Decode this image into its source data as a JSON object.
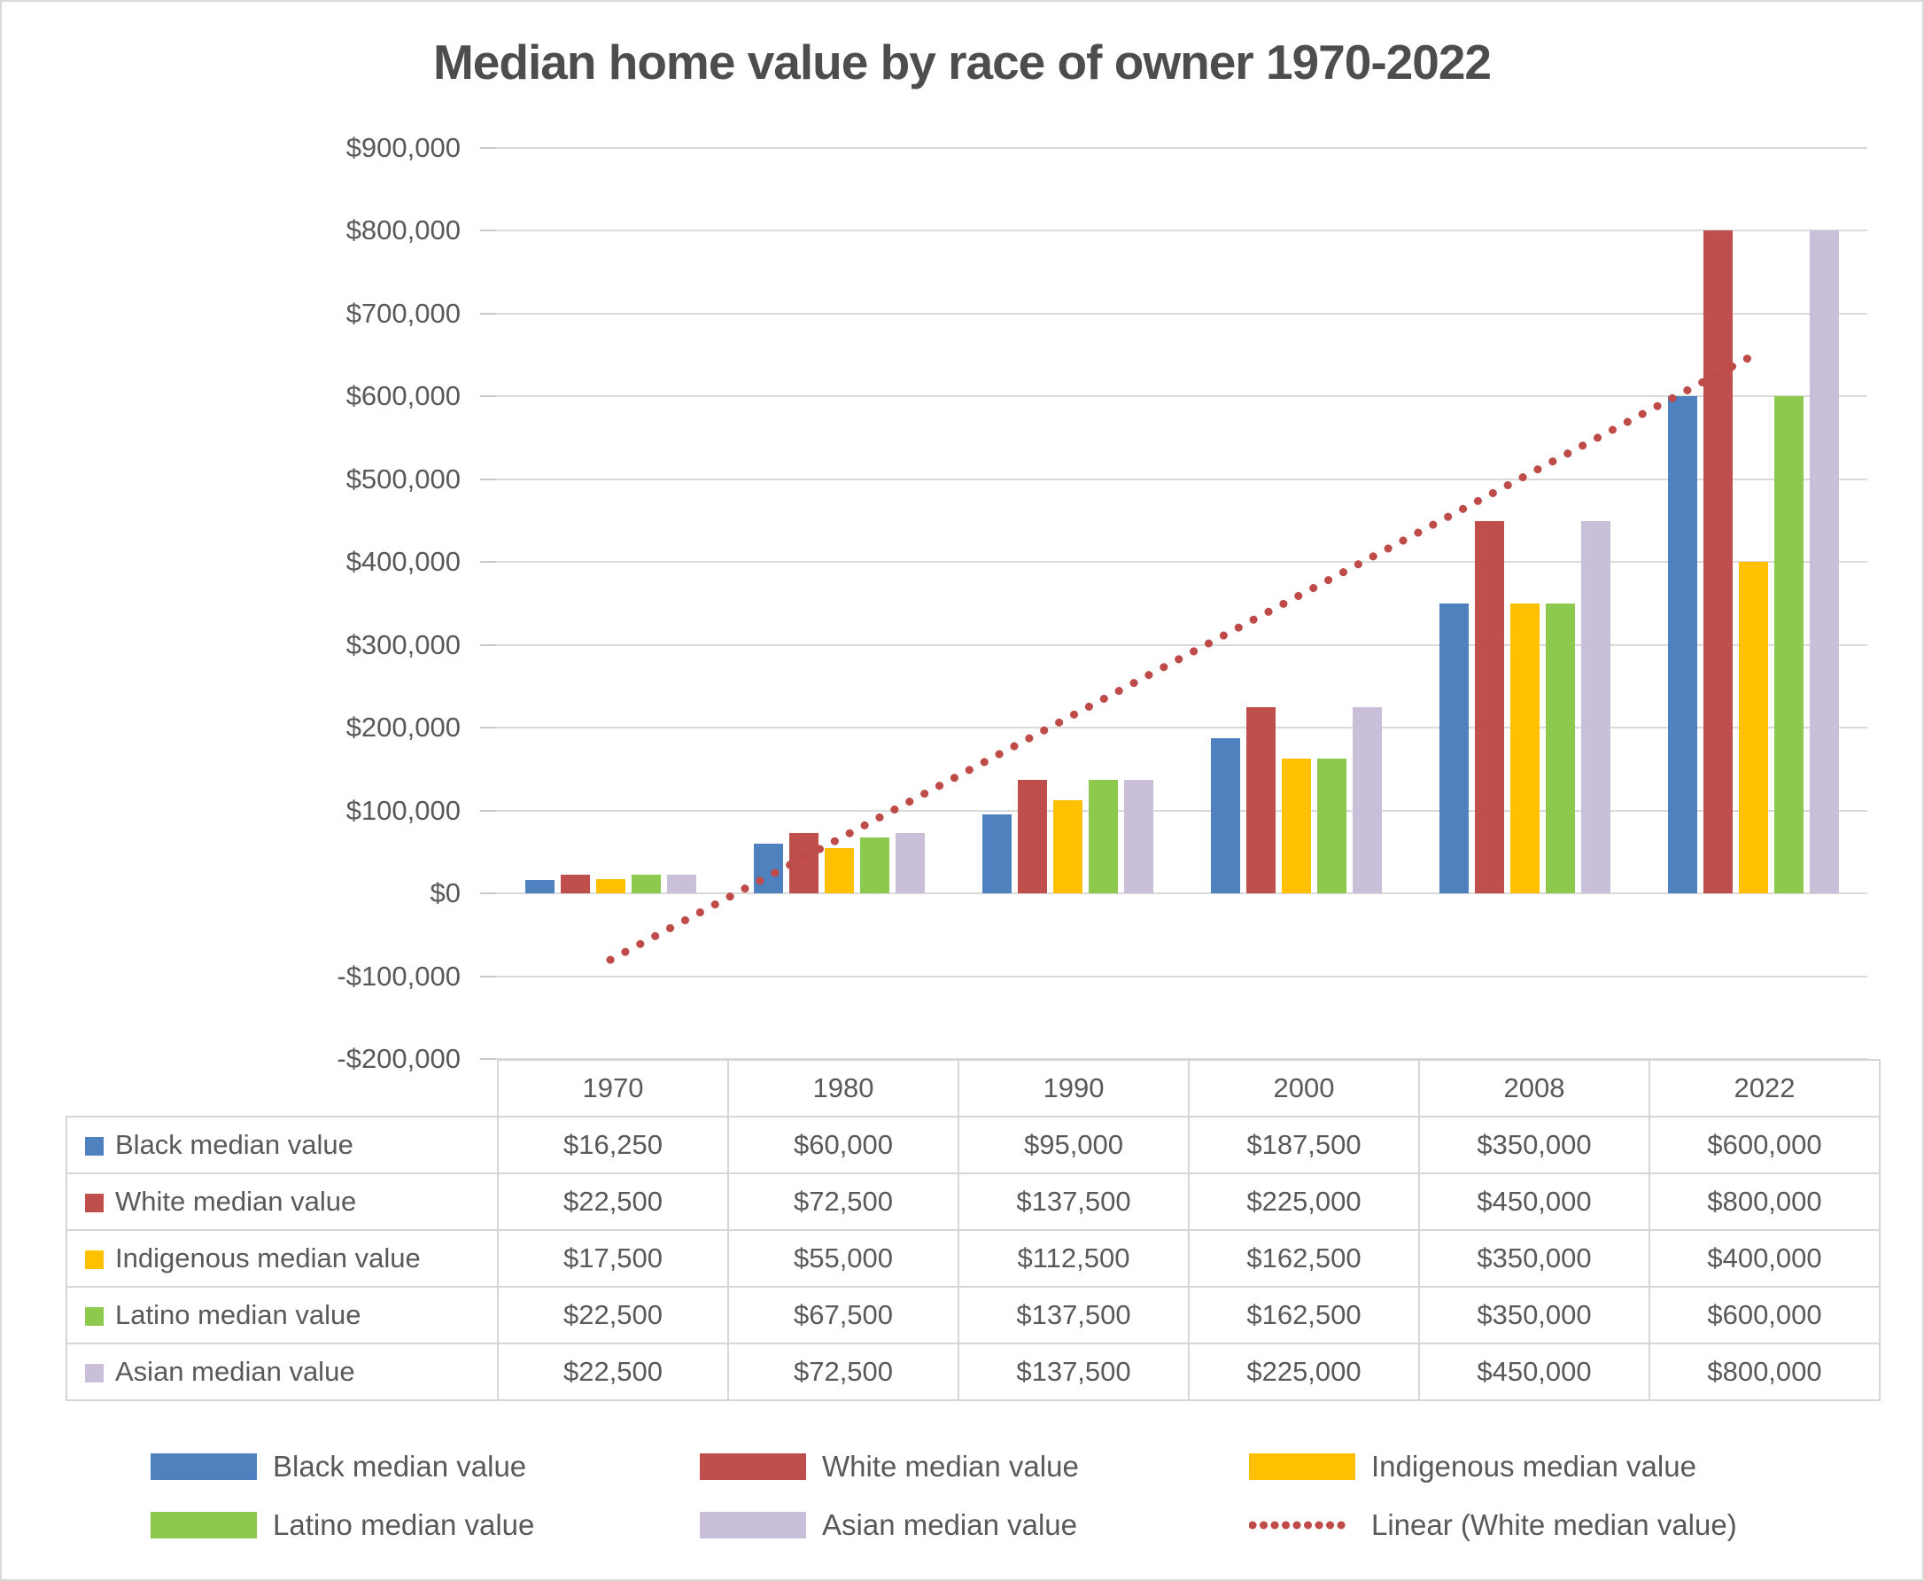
{
  "page": {
    "title": "Median home value by race of owner 1970-2022"
  },
  "colors": {
    "text": "#595959",
    "title_text": "#4D4D4D",
    "gridline": "#DADADA",
    "tick": "#C8C8C8",
    "table_border": "#D6D6D6",
    "background": "#FFFFFF"
  },
  "chart_data": {
    "type": "bar",
    "title": "Median home value by race of owner 1970-2022",
    "categories": [
      "1970",
      "1980",
      "1990",
      "2000",
      "2008",
      "2022"
    ],
    "series": [
      {
        "name": "Black median value",
        "color": "#4E81BD",
        "values": [
          16250,
          60000,
          95000,
          187500,
          350000,
          600000
        ],
        "formatted": [
          "$16,250",
          "$60,000",
          "$95,000",
          "$187,500",
          "$350,000",
          "$600,000"
        ]
      },
      {
        "name": "White median value",
        "color": "#BF4F4C",
        "values": [
          22500,
          72500,
          137500,
          225000,
          450000,
          800000
        ],
        "formatted": [
          "$22,500",
          "$72,500",
          "$137,500",
          "$225,000",
          "$450,000",
          "$800,000"
        ]
      },
      {
        "name": "Indigenous median value",
        "color": "#FFC000",
        "values": [
          17500,
          55000,
          112500,
          162500,
          350000,
          400000
        ],
        "formatted": [
          "$17,500",
          "$55,000",
          "$112,500",
          "$162,500",
          "$350,000",
          "$400,000"
        ]
      },
      {
        "name": "Latino median value",
        "color": "#8CC94D",
        "values": [
          22500,
          67500,
          137500,
          162500,
          350000,
          600000
        ],
        "formatted": [
          "$22,500",
          "$67,500",
          "$137,500",
          "$162,500",
          "$350,000",
          "$600,000"
        ]
      },
      {
        "name": "Asian median value",
        "color": "#C9BFD8",
        "values": [
          22500,
          72500,
          137500,
          225000,
          450000,
          800000
        ],
        "formatted": [
          "$22,500",
          "$72,500",
          "$137,500",
          "$225,000",
          "$450,000",
          "$800,000"
        ]
      }
    ],
    "trendline": {
      "name": "Linear (White median value)",
      "source_series": "White median value",
      "color": "#BE4B48",
      "style": "dotted"
    },
    "y_axis": {
      "min": -200000,
      "max": 900000,
      "step": 100000,
      "tick_labels": [
        "$900,000",
        "$800,000",
        "$700,000",
        "$600,000",
        "$500,000",
        "$400,000",
        "$300,000",
        "$200,000",
        "$100,000",
        "$0",
        "-$100,000",
        "-$200,000"
      ]
    },
    "grid": true,
    "legend_position": "bottom",
    "data_table_shown": true
  }
}
